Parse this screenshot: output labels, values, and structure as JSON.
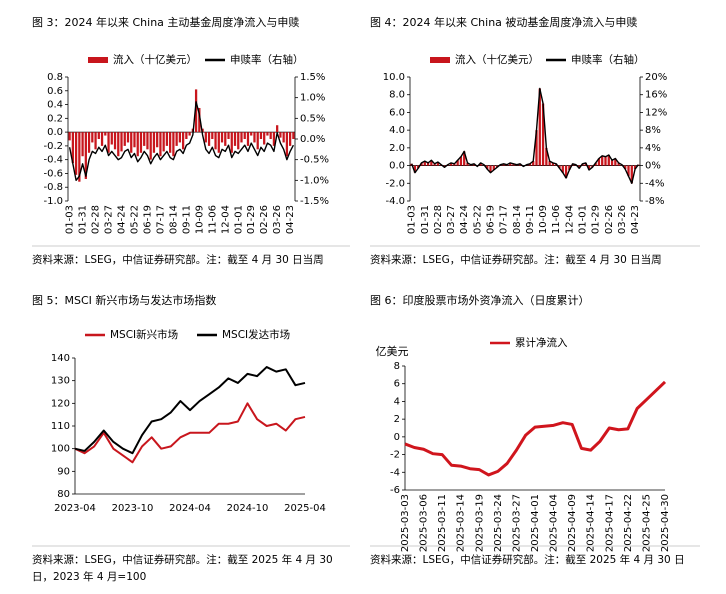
{
  "chart_data": [
    {
      "type": "combo",
      "title": "图 3：2024 年以来 China 主动基金周度净流入与申赎",
      "note": "资料来源：LSEG，中信证券研究部。注：截至 4 月 30 日当周",
      "categories": [
        "01-03",
        null,
        null,
        null,
        "01-31",
        null,
        null,
        null,
        "02-28",
        null,
        null,
        null,
        "03-27",
        null,
        null,
        null,
        "04-24",
        null,
        null,
        null,
        "05-22",
        null,
        null,
        null,
        "06-19",
        null,
        null,
        null,
        "07-17",
        null,
        null,
        null,
        "08-14",
        null,
        null,
        null,
        "09-11",
        null,
        null,
        null,
        "10-09",
        null,
        null,
        null,
        "11-06",
        null,
        null,
        null,
        "12-04",
        null,
        null,
        null,
        "01-01",
        null,
        null,
        null,
        "01-29",
        null,
        null,
        null,
        "02-26",
        null,
        null,
        null,
        "03-26",
        null,
        null,
        null,
        "04-23",
        null
      ],
      "series": [
        {
          "name": "流入（十亿美元）",
          "mark": "bar",
          "color": "#c8161d",
          "values": [
            -0.12,
            -0.45,
            -0.62,
            -0.72,
            -0.35,
            -0.68,
            -0.3,
            -0.15,
            -0.25,
            -0.1,
            -0.2,
            -0.05,
            -0.3,
            -0.18,
            -0.25,
            -0.35,
            -0.28,
            -0.2,
            -0.15,
            -0.3,
            -0.22,
            -0.35,
            -0.3,
            -0.2,
            -0.25,
            -0.4,
            -0.3,
            -0.22,
            -0.35,
            -0.28,
            -0.2,
            -0.3,
            -0.35,
            -0.2,
            -0.15,
            -0.25,
            -0.1,
            -0.05,
            0.05,
            0.62,
            0.35,
            0.05,
            -0.15,
            -0.2,
            -0.1,
            -0.25,
            -0.3,
            -0.15,
            -0.2,
            -0.1,
            -0.3,
            -0.2,
            -0.25,
            -0.15,
            -0.1,
            -0.2,
            -0.05,
            -0.15,
            -0.25,
            -0.1,
            -0.18,
            -0.05,
            -0.1,
            -0.2,
            0.1,
            -0.08,
            -0.15,
            -0.35,
            -0.2,
            -0.1
          ]
        },
        {
          "name": "申赎率（右轴）",
          "mark": "line",
          "axis": "y2",
          "color": "#000000",
          "values": [
            -0.2,
            -0.6,
            -1.0,
            -0.9,
            -0.6,
            -0.9,
            -0.5,
            -0.3,
            -0.35,
            -0.2,
            -0.3,
            -0.15,
            -0.4,
            -0.3,
            -0.4,
            -0.5,
            -0.45,
            -0.3,
            -0.25,
            -0.45,
            -0.35,
            -0.55,
            -0.45,
            -0.3,
            -0.4,
            -0.6,
            -0.45,
            -0.35,
            -0.5,
            -0.4,
            -0.3,
            -0.45,
            -0.5,
            -0.3,
            -0.25,
            -0.35,
            -0.15,
            -0.1,
            0.1,
            0.9,
            0.6,
            0.1,
            -0.25,
            -0.35,
            -0.2,
            -0.4,
            -0.45,
            -0.25,
            -0.3,
            -0.15,
            -0.45,
            -0.3,
            -0.35,
            -0.25,
            -0.15,
            -0.3,
            -0.1,
            -0.25,
            -0.4,
            -0.2,
            -0.3,
            -0.1,
            -0.15,
            -0.3,
            0.15,
            -0.1,
            -0.25,
            -0.5,
            -0.3,
            -0.15
          ]
        }
      ],
      "ylim": [
        -1.0,
        0.8
      ],
      "yticks": [
        {
          "value": -1.0,
          "label": "-1.0"
        },
        -0.8,
        -0.6,
        -0.4,
        -0.2,
        {
          "value": 0,
          "label": "0.0"
        },
        0.2,
        0.4,
        0.6,
        0.8
      ],
      "y2lim": [
        -1.5,
        1.5
      ],
      "y2ticks": [
        {
          "value": -1.5,
          "label": "-1.5%"
        },
        {
          "value": -1.0,
          "label": "-1.0%"
        },
        {
          "value": -0.5,
          "label": "-0.5%"
        },
        {
          "value": 0,
          "label": "0.0%"
        },
        {
          "value": 0.5,
          "label": "0.5%"
        },
        {
          "value": 1.0,
          "label": "1.0%"
        },
        {
          "value": 1.5,
          "label": "1.5%"
        }
      ]
    },
    {
      "type": "combo",
      "title": "图 4：2024 年以来 China 被动基金周度净流入与申赎",
      "note": "资料来源：LSEG，中信证券研究部。注：截至 4 月 30 日当周",
      "categories": [
        "01-03",
        null,
        null,
        null,
        "01-31",
        null,
        null,
        null,
        "02-28",
        null,
        null,
        null,
        "03-27",
        null,
        null,
        null,
        "04-24",
        null,
        null,
        null,
        "05-22",
        null,
        null,
        null,
        "06-19",
        null,
        null,
        null,
        "07-17",
        null,
        null,
        null,
        "08-14",
        null,
        null,
        null,
        "09-11",
        null,
        null,
        null,
        "10-09",
        null,
        null,
        null,
        "11-06",
        null,
        null,
        null,
        "12-04",
        null,
        null,
        null,
        "01-01",
        null,
        null,
        null,
        "01-29",
        null,
        null,
        null,
        "02-26",
        null,
        null,
        null,
        "03-26",
        null,
        null,
        null,
        "04-23",
        null
      ],
      "series": [
        {
          "name": "流入（十亿美元）",
          "mark": "bar",
          "color": "#c8161d",
          "values": [
            0.2,
            -0.8,
            -0.3,
            0.3,
            0.5,
            0.3,
            0.6,
            0.2,
            0.4,
            0.1,
            -0.2,
            0.1,
            0.3,
            0.2,
            0.6,
            1.0,
            1.6,
            0.3,
            0.1,
            0.2,
            -0.1,
            0.3,
            0.1,
            -0.4,
            -0.8,
            -0.5,
            -0.2,
            0.1,
            0.2,
            0.1,
            0.3,
            0.2,
            0.1,
            0.2,
            -0.1,
            0.1,
            0.2,
            0.5,
            4.0,
            8.7,
            7.0,
            2.0,
            0.5,
            0.3,
            0.2,
            -0.3,
            -0.8,
            -1.4,
            -0.5,
            0.2,
            0.1,
            -0.3,
            0.2,
            0.3,
            -0.5,
            -0.2,
            0.3,
            0.8,
            1.1,
            1.0,
            1.2,
            0.6,
            0.8,
            0.3,
            0.1,
            -0.4,
            -1.2,
            -2.0,
            -0.4,
            0.1
          ]
        },
        {
          "name": "申赎率（右轴）",
          "mark": "line",
          "axis": "y2",
          "color": "#000000",
          "values": [
            0.4,
            -1.6,
            -0.6,
            0.6,
            1.0,
            0.6,
            1.2,
            0.4,
            0.8,
            0.2,
            -0.4,
            0.2,
            0.6,
            0.4,
            1.2,
            2.0,
            3.2,
            0.6,
            0.2,
            0.4,
            -0.2,
            0.6,
            0.2,
            -0.8,
            -1.6,
            -1.0,
            -0.4,
            0.2,
            0.4,
            0.2,
            0.6,
            0.4,
            0.2,
            0.4,
            -0.2,
            0.2,
            0.4,
            1.0,
            8.0,
            17.4,
            14.0,
            4.0,
            1.0,
            0.6,
            0.4,
            -0.6,
            -1.6,
            -2.8,
            -1.0,
            0.4,
            0.2,
            -0.6,
            0.4,
            0.6,
            -1.0,
            -0.4,
            0.6,
            1.6,
            2.2,
            2.0,
            2.4,
            1.2,
            1.6,
            0.6,
            0.2,
            -0.8,
            -2.4,
            -4.0,
            -0.8,
            0.2
          ]
        }
      ],
      "ylim": [
        -4.0,
        10.0
      ],
      "yticks": [
        {
          "value": -4,
          "label": "-4.0"
        },
        {
          "value": -2,
          "label": "-2.0"
        },
        {
          "value": 0,
          "label": "0.0"
        },
        {
          "value": 2,
          "label": "2.0"
        },
        {
          "value": 4,
          "label": "4.0"
        },
        {
          "value": 6,
          "label": "6.0"
        },
        {
          "value": 8,
          "label": "8.0"
        },
        {
          "value": 10,
          "label": "10.0"
        }
      ],
      "y2lim": [
        -8,
        20
      ],
      "y2ticks": [
        {
          "value": -8,
          "label": "-8%"
        },
        {
          "value": -4,
          "label": "-4%"
        },
        {
          "value": 0,
          "label": "0%"
        },
        {
          "value": 4,
          "label": "4%"
        },
        {
          "value": 8,
          "label": "8%"
        },
        {
          "value": 12,
          "label": "12%"
        },
        {
          "value": 16,
          "label": "16%"
        },
        {
          "value": 20,
          "label": "20%"
        }
      ]
    },
    {
      "type": "line",
      "title": "图 5：MSCI 新兴市场与发达市场指数",
      "note": "资料来源：LSEG，中信证券研究部。注：截至 2025 年 4 月 30 日，2023 年 4 月=100",
      "categories": [
        "2023-04",
        null,
        null,
        null,
        null,
        null,
        "2023-10",
        null,
        null,
        null,
        null,
        null,
        "2024-04",
        null,
        null,
        null,
        null,
        null,
        "2024-10",
        null,
        null,
        null,
        null,
        null,
        "2025-04"
      ],
      "series": [
        {
          "name": "MSCI新兴市场",
          "color": "#c8161d",
          "values": [
            100,
            98,
            101,
            107,
            100,
            97,
            94,
            101,
            105,
            100,
            101,
            105,
            107,
            107,
            107,
            111,
            111,
            112,
            120,
            113,
            110,
            111,
            108,
            113,
            114
          ]
        },
        {
          "name": "MSCI发达市场",
          "color": "#000000",
          "values": [
            100,
            99,
            103,
            108,
            103,
            100,
            98,
            106,
            112,
            113,
            116,
            121,
            117,
            121,
            124,
            127,
            131,
            129,
            133,
            132,
            136,
            134,
            135,
            128,
            129
          ]
        }
      ],
      "ylim": [
        80,
        140
      ],
      "yticks": [
        80,
        90,
        100,
        110,
        120,
        130,
        140
      ]
    },
    {
      "type": "line",
      "title": "图 6：印度股票市场外资净流入（日度累计）",
      "note": "资料来源：LSEG，中信证券研究部。注：截至 2025 年 4 月 30 日",
      "ylabel": "亿美元",
      "categories": [
        "2025-03-03",
        null,
        "2025-03-06",
        null,
        "2025-03-11",
        null,
        "2025-03-14",
        null,
        "2025-03-19",
        null,
        "2025-03-24",
        null,
        "2025-03-27",
        null,
        "2025-04-01",
        null,
        "2025-04-04",
        null,
        "2025-04-09",
        null,
        "2025-04-14",
        null,
        "2025-04-17",
        null,
        "2025-04-22",
        null,
        "2025-04-25",
        null,
        "2025-04-30"
      ],
      "series": [
        {
          "name": "累计净流入",
          "color": "#d0151d",
          "values": [
            -0.8,
            -1.2,
            -1.4,
            -1.9,
            -2.0,
            -3.2,
            -3.3,
            -3.6,
            -3.7,
            -4.3,
            -3.9,
            -3.0,
            -1.5,
            0.2,
            1.1,
            1.2,
            1.3,
            1.6,
            1.4,
            -1.3,
            -1.5,
            -0.5,
            1.0,
            0.8,
            0.9,
            3.2,
            4.2,
            5.2,
            6.2
          ]
        }
      ],
      "ylim": [
        -6,
        8
      ],
      "yticks": [
        -6,
        -4,
        -2,
        0,
        2,
        4,
        6,
        8
      ]
    }
  ]
}
